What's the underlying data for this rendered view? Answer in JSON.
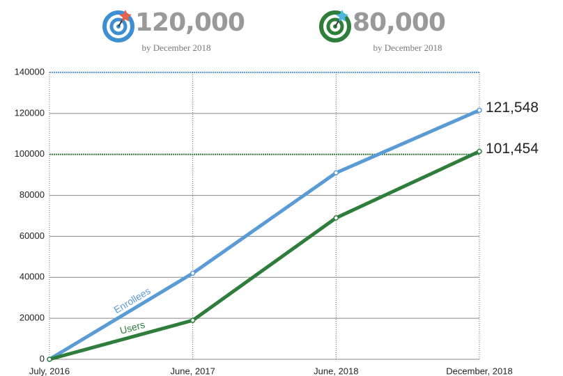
{
  "chart_data": {
    "type": "line",
    "targets": [
      {
        "value": "120,000",
        "note": "by December 2018",
        "color": "#3d8fd1"
      },
      {
        "value": "80,000",
        "note": "by December 2018",
        "color": "#2e7d3b"
      }
    ],
    "categories": [
      "July, 2016",
      "June, 2017",
      "June, 2018",
      "December, 2018"
    ],
    "series": [
      {
        "name": "Enrollees",
        "color": "#5b9bd5",
        "values": [
          0,
          42000,
          91000,
          121548
        ],
        "value_labels": [
          null,
          null,
          null,
          "121,548"
        ]
      },
      {
        "name": "Users",
        "color": "#2e7d3b",
        "values": [
          0,
          19000,
          69000,
          101454
        ],
        "value_labels": [
          null,
          null,
          null,
          "101,454"
        ]
      }
    ],
    "ylim": [
      0,
      140000
    ],
    "yticks": [
      0,
      20000,
      40000,
      60000,
      80000,
      100000,
      120000,
      140000
    ],
    "reference_lines": [
      {
        "value": 140000,
        "color": "#5b9bd5"
      },
      {
        "value": 100000,
        "color": "#2e7d3b"
      }
    ],
    "grid": true
  }
}
